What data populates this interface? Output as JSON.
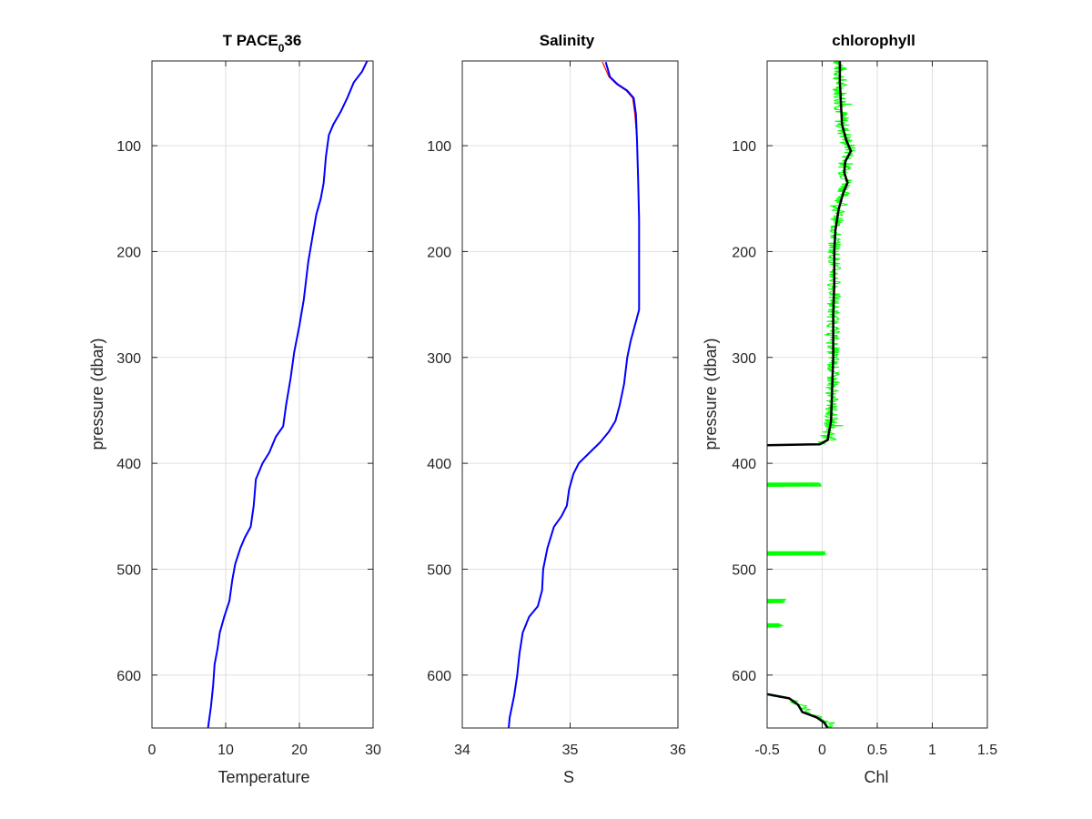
{
  "chart_data": [
    {
      "type": "line",
      "title": "T PACE",
      "title_subscript": "0",
      "title_suffix": "36",
      "xlabel": "Temperature",
      "ylabel": "pressure (dbar)",
      "xlim": [
        0,
        30
      ],
      "ylim": [
        20,
        650
      ],
      "y_reversed": true,
      "grid": true,
      "xticks": [
        0,
        10,
        20,
        30
      ],
      "xtick_labels": [
        "0",
        "10",
        "20",
        "30"
      ],
      "yticks": [
        100,
        200,
        300,
        400,
        500,
        600
      ],
      "ytick_labels": [
        "100",
        "200",
        "300",
        "400",
        "500",
        "600"
      ],
      "series": [
        {
          "color": "#0000ff",
          "points": [
            [
              29.2,
              20
            ],
            [
              28.5,
              30
            ],
            [
              27.4,
              40
            ],
            [
              26.5,
              55
            ],
            [
              25.6,
              68
            ],
            [
              24.6,
              80
            ],
            [
              24.0,
              90
            ],
            [
              23.6,
              110
            ],
            [
              23.3,
              135
            ],
            [
              22.9,
              150
            ],
            [
              22.3,
              165
            ],
            [
              21.8,
              185
            ],
            [
              21.2,
              210
            ],
            [
              20.6,
              245
            ],
            [
              20.0,
              270
            ],
            [
              19.3,
              295
            ],
            [
              18.8,
              320
            ],
            [
              18.2,
              345
            ],
            [
              17.8,
              365
            ],
            [
              16.8,
              375
            ],
            [
              15.9,
              390
            ],
            [
              15.0,
              400
            ],
            [
              14.1,
              415
            ],
            [
              13.8,
              440
            ],
            [
              13.4,
              460
            ],
            [
              12.6,
              470
            ],
            [
              12.0,
              480
            ],
            [
              11.3,
              495
            ],
            [
              10.9,
              510
            ],
            [
              10.5,
              530
            ],
            [
              9.8,
              545
            ],
            [
              9.2,
              560
            ],
            [
              8.9,
              575
            ],
            [
              8.5,
              590
            ],
            [
              8.3,
              610
            ],
            [
              8.0,
              630
            ],
            [
              7.6,
              650
            ]
          ]
        }
      ]
    },
    {
      "type": "line",
      "title": "Salinity",
      "xlabel": "S",
      "ylabel": "",
      "xlim": [
        34,
        36
      ],
      "ylim": [
        20,
        650
      ],
      "y_reversed": true,
      "grid": true,
      "xticks": [
        34,
        35,
        36
      ],
      "xtick_labels": [
        "34",
        "35",
        "36"
      ],
      "yticks": [
        100,
        200,
        300,
        400,
        500,
        600
      ],
      "ytick_labels": [
        "100",
        "200",
        "300",
        "400",
        "500",
        "600"
      ],
      "series": [
        {
          "color": "#ff0000",
          "points": [
            [
              35.3,
              21
            ],
            [
              35.33,
              28
            ],
            [
              35.36,
              35
            ],
            [
              35.43,
              42
            ],
            [
              35.52,
              48
            ],
            [
              35.58,
              55
            ],
            [
              35.6,
              70
            ],
            [
              35.62,
              95
            ],
            [
              35.63,
              130
            ],
            [
              35.64,
              170
            ],
            [
              35.64,
              210
            ],
            [
              35.64,
              240
            ],
            [
              35.64,
              255
            ],
            [
              35.6,
              270
            ],
            [
              35.56,
              285
            ],
            [
              35.53,
              300
            ],
            [
              35.5,
              325
            ],
            [
              35.46,
              345
            ],
            [
              35.42,
              360
            ],
            [
              35.36,
              370
            ],
            [
              35.28,
              380
            ],
            [
              35.18,
              390
            ],
            [
              35.08,
              400
            ],
            [
              35.03,
              410
            ],
            [
              34.99,
              425
            ],
            [
              34.97,
              440
            ],
            [
              34.92,
              450
            ],
            [
              34.85,
              460
            ],
            [
              34.79,
              480
            ],
            [
              34.75,
              500
            ],
            [
              34.74,
              520
            ],
            [
              34.7,
              535
            ],
            [
              34.62,
              545
            ],
            [
              34.56,
              560
            ],
            [
              34.53,
              580
            ],
            [
              34.51,
              600
            ],
            [
              34.48,
              620
            ],
            [
              34.44,
              640
            ],
            [
              34.43,
              650
            ]
          ]
        },
        {
          "color": "#0000ff",
          "points": [
            [
              35.33,
              21
            ],
            [
              35.35,
              28
            ],
            [
              35.37,
              35
            ],
            [
              35.44,
              42
            ],
            [
              35.53,
              48
            ],
            [
              35.59,
              55
            ],
            [
              35.61,
              70
            ],
            [
              35.62,
              95
            ],
            [
              35.63,
              130
            ],
            [
              35.64,
              170
            ],
            [
              35.64,
              210
            ],
            [
              35.64,
              240
            ],
            [
              35.64,
              255
            ],
            [
              35.6,
              270
            ],
            [
              35.56,
              285
            ],
            [
              35.53,
              300
            ],
            [
              35.5,
              325
            ],
            [
              35.46,
              345
            ],
            [
              35.42,
              360
            ],
            [
              35.36,
              370
            ],
            [
              35.28,
              380
            ],
            [
              35.18,
              390
            ],
            [
              35.08,
              400
            ],
            [
              35.03,
              410
            ],
            [
              34.99,
              425
            ],
            [
              34.97,
              440
            ],
            [
              34.92,
              450
            ],
            [
              34.85,
              460
            ],
            [
              34.79,
              480
            ],
            [
              34.75,
              500
            ],
            [
              34.74,
              520
            ],
            [
              34.7,
              535
            ],
            [
              34.62,
              545
            ],
            [
              34.56,
              560
            ],
            [
              34.53,
              580
            ],
            [
              34.51,
              600
            ],
            [
              34.48,
              620
            ],
            [
              34.44,
              640
            ],
            [
              34.43,
              650
            ]
          ]
        }
      ]
    },
    {
      "type": "line",
      "title": "chlorophyll",
      "xlabel": "Chl",
      "ylabel": "pressure (dbar)",
      "xlim": [
        -0.5,
        1.5
      ],
      "ylim": [
        20,
        650
      ],
      "y_reversed": true,
      "grid": true,
      "xticks": [
        -0.5,
        0,
        0.5,
        1,
        1.5
      ],
      "xtick_labels": [
        "-0.5",
        "0",
        "0.5",
        "1",
        "1.5"
      ],
      "yticks": [
        100,
        200,
        300,
        400,
        500,
        600
      ],
      "ytick_labels": [
        "100",
        "200",
        "300",
        "400",
        "500",
        "600"
      ],
      "series": [
        {
          "color": "#00ff00",
          "style": "noisy-band",
          "points": [
            [
              0.16,
              20
            ],
            [
              0.16,
              40
            ],
            [
              0.17,
              60
            ],
            [
              0.18,
              80
            ],
            [
              0.22,
              95
            ],
            [
              0.26,
              105
            ],
            [
              0.21,
              115
            ],
            [
              0.2,
              125
            ],
            [
              0.23,
              135
            ],
            [
              0.19,
              145
            ],
            [
              0.15,
              160
            ],
            [
              0.12,
              180
            ],
            [
              0.11,
              200
            ],
            [
              0.11,
              230
            ],
            [
              0.1,
              260
            ],
            [
              0.1,
              300
            ],
            [
              0.09,
              330
            ],
            [
              0.08,
              360
            ],
            [
              0.05,
              378
            ],
            [
              -0.02,
              382
            ],
            [
              -0.5,
              383
            ]
          ],
          "spikes": [
            [
              420,
              -0.5,
              0.0
            ],
            [
              485,
              -0.5,
              0.05
            ],
            [
              530,
              -0.5,
              -0.32
            ],
            [
              553,
              -0.5,
              -0.35
            ]
          ],
          "points_bottom": [
            [
              -0.5,
              618
            ],
            [
              -0.3,
              622
            ],
            [
              -0.2,
              628
            ],
            [
              -0.15,
              634
            ],
            [
              0.0,
              640
            ],
            [
              0.05,
              645
            ],
            [
              0.08,
              650
            ]
          ]
        },
        {
          "color": "#000000",
          "points": [
            [
              0.16,
              20
            ],
            [
              0.16,
              40
            ],
            [
              0.17,
              60
            ],
            [
              0.18,
              80
            ],
            [
              0.22,
              95
            ],
            [
              0.26,
              105
            ],
            [
              0.21,
              115
            ],
            [
              0.2,
              125
            ],
            [
              0.23,
              135
            ],
            [
              0.19,
              145
            ],
            [
              0.15,
              160
            ],
            [
              0.12,
              180
            ],
            [
              0.11,
              200
            ],
            [
              0.11,
              230
            ],
            [
              0.1,
              260
            ],
            [
              0.1,
              300
            ],
            [
              0.09,
              330
            ],
            [
              0.08,
              360
            ],
            [
              0.05,
              378
            ],
            [
              -0.02,
              382
            ],
            [
              -0.5,
              383
            ]
          ],
          "points_bottom": [
            [
              -0.5,
              618
            ],
            [
              -0.3,
              622
            ],
            [
              -0.22,
              628
            ],
            [
              -0.18,
              635
            ],
            [
              -0.05,
              640
            ],
            [
              0.02,
              645
            ],
            [
              0.05,
              650
            ]
          ]
        }
      ]
    }
  ]
}
